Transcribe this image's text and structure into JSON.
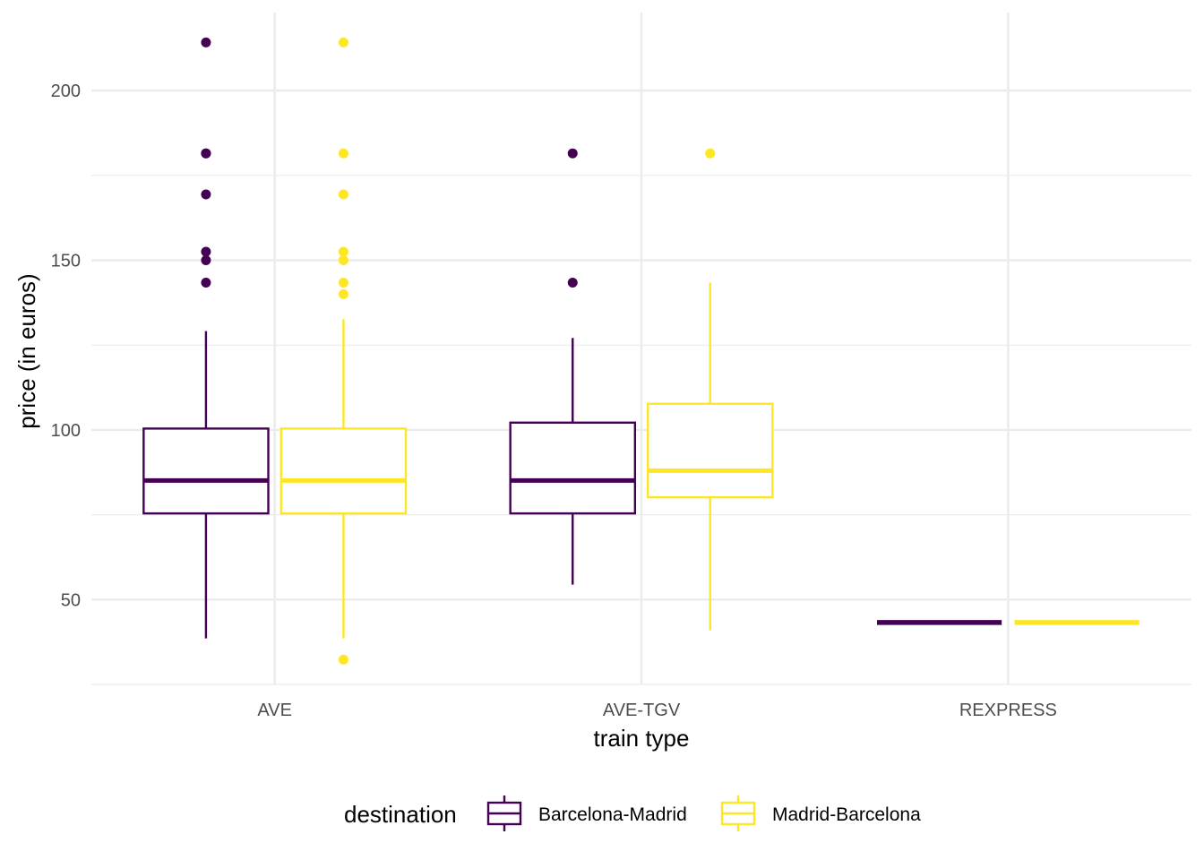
{
  "chart_data": {
    "type": "boxplot",
    "xlabel": "train type",
    "ylabel": "price (in euros)",
    "ylim": [
      25,
      223
    ],
    "yticks": [
      50,
      100,
      150,
      200
    ],
    "grid": true,
    "legend_position": "bottom",
    "legend_title": "destination",
    "categories": [
      "AVE",
      "AVE-TGV",
      "REXPRESS"
    ],
    "series": [
      {
        "name": "Barcelona-Madrid",
        "color": "#440154",
        "boxes": [
          {
            "category": "AVE",
            "min": 38.55,
            "q1": 75.4,
            "median": 85.1,
            "q3": 100.4,
            "max": 129.1,
            "outliers": [
              214.2,
              181.5,
              181.5,
              169.4,
              152.5,
              150.0,
              143.4
            ]
          },
          {
            "category": "AVE-TGV",
            "min": 54.4,
            "q1": 75.4,
            "median": 85.1,
            "q3": 102.15,
            "max": 127.1,
            "outliers": [
              181.5,
              143.4
            ]
          },
          {
            "category": "REXPRESS",
            "min": 43.25,
            "q1": 43.25,
            "median": 43.25,
            "q3": 43.25,
            "max": 43.25,
            "outliers": []
          }
        ]
      },
      {
        "name": "Madrid-Barcelona",
        "color": "#fde725",
        "boxes": [
          {
            "category": "AVE",
            "min": 38.55,
            "q1": 75.4,
            "median": 85.1,
            "q3": 100.4,
            "max": 132.6,
            "outliers": [
              214.2,
              181.5,
              169.4,
              152.5,
              150.0,
              143.4,
              140.0,
              32.3
            ]
          },
          {
            "category": "AVE-TGV",
            "min": 40.95,
            "q1": 80.15,
            "median": 88.0,
            "q3": 107.7,
            "max": 143.4,
            "outliers": [
              181.5
            ]
          },
          {
            "category": "REXPRESS",
            "min": 43.25,
            "q1": 43.25,
            "median": 43.25,
            "q3": 43.25,
            "max": 43.25,
            "outliers": []
          }
        ]
      }
    ]
  }
}
